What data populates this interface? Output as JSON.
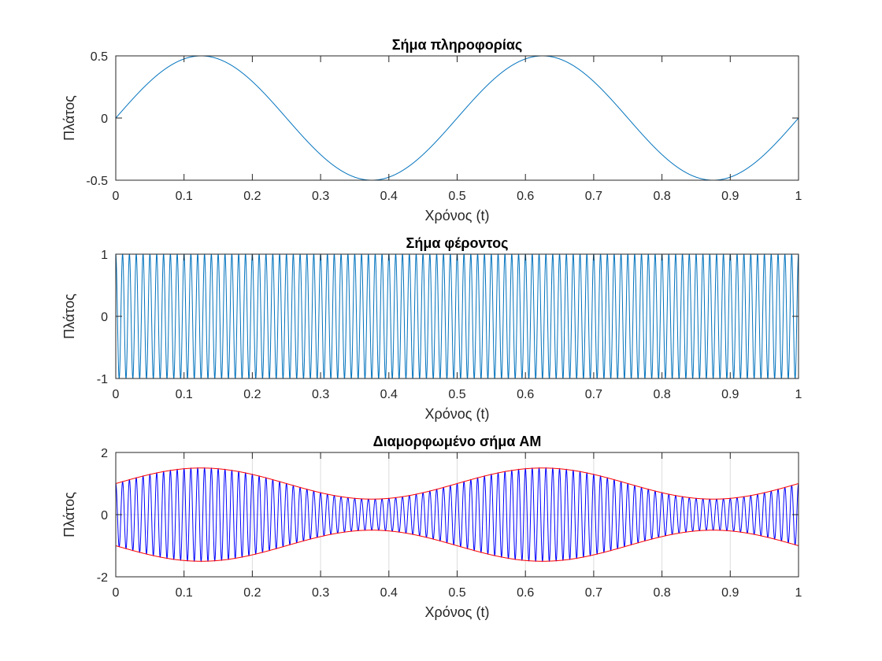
{
  "colors": {
    "background": "#ffffff",
    "axes": "#262626",
    "grid": "#dcdcdc",
    "series_default": "#0072BD",
    "am_signal": "#0000ff",
    "envelope": "#ff0000"
  },
  "chart_data": [
    {
      "type": "line",
      "title": "Σήμα πληροφορίας",
      "xlabel": "Χρόνος (t)",
      "ylabel": "Πλάτος",
      "xlim": [
        0,
        1
      ],
      "ylim": [
        -0.5,
        0.5
      ],
      "xticks": [
        "0",
        "0.1",
        "0.2",
        "0.3",
        "0.4",
        "0.5",
        "0.6",
        "0.7",
        "0.8",
        "0.9",
        "1"
      ],
      "yticks": [
        "-0.5",
        "0",
        "0.5"
      ],
      "grid": false,
      "series": [
        {
          "function": "A*sin(2*pi*f*t)",
          "amplitude": 0.5,
          "frequency": 2,
          "color": "#0072BD"
        }
      ]
    },
    {
      "type": "line",
      "title": "Σήμα φέροντος",
      "xlabel": "Χρόνος (t)",
      "ylabel": "Πλάτος",
      "xlim": [
        0,
        1
      ],
      "ylim": [
        -1,
        1
      ],
      "xticks": [
        "0",
        "0.1",
        "0.2",
        "0.3",
        "0.4",
        "0.5",
        "0.6",
        "0.7",
        "0.8",
        "0.9",
        "1"
      ],
      "yticks": [
        "-1",
        "0",
        "1"
      ],
      "grid": false,
      "series": [
        {
          "function": "A*cos(2*pi*f*t)",
          "amplitude": 1,
          "frequency": 100,
          "color": "#0072BD"
        }
      ]
    },
    {
      "type": "line",
      "title": "Διαμορφωμένο σήμα AM",
      "xlabel": "Χρόνος (t)",
      "ylabel": "Πλάτος",
      "xlim": [
        0,
        1
      ],
      "ylim": [
        -2,
        2
      ],
      "xticks": [
        "0",
        "0.1",
        "0.2",
        "0.3",
        "0.4",
        "0.5",
        "0.6",
        "0.7",
        "0.8",
        "0.9",
        "1"
      ],
      "yticks": [
        "-2",
        "0",
        "2"
      ],
      "grid": true,
      "series": [
        {
          "function": "(1 + m(t))*cos(2*pi*fc*t)",
          "message_amplitude": 0.5,
          "message_frequency": 2,
          "carrier_frequency": 100,
          "color": "#0000ff"
        },
        {
          "function": "1 + m(t)",
          "message_amplitude": 0.5,
          "message_frequency": 2,
          "color": "#ff0000"
        },
        {
          "function": "-(1 + m(t))",
          "message_amplitude": 0.5,
          "message_frequency": 2,
          "color": "#ff0000"
        }
      ]
    }
  ]
}
